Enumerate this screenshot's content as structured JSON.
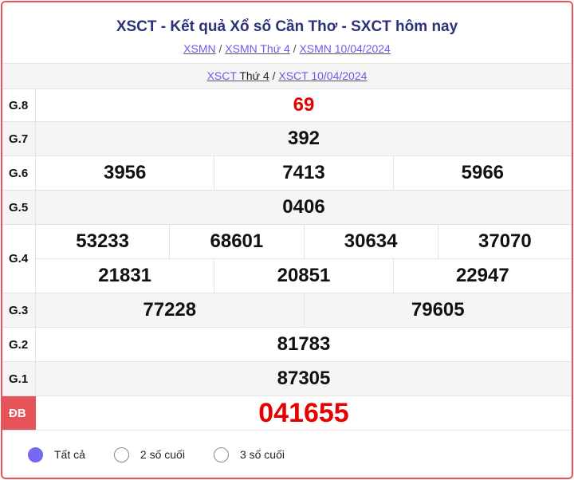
{
  "header": {
    "title": "XSCT - Kết quả Xổ số Cần Thơ - SXCT hôm nay",
    "breadcrumbs": [
      "XSMN",
      "XSMN Thứ 4",
      "XSMN 10/04/2024"
    ]
  },
  "subnav": {
    "link1_prefix": "XSCT",
    "link1_suffix": "Thứ 4",
    "link2": "XSCT 10/04/2024"
  },
  "prizes": {
    "g8": {
      "label": "G.8",
      "numbers": [
        "69"
      ]
    },
    "g7": {
      "label": "G.7",
      "numbers": [
        "392"
      ]
    },
    "g6": {
      "label": "G.6",
      "numbers": [
        "3956",
        "7413",
        "5966"
      ]
    },
    "g5": {
      "label": "G.5",
      "numbers": [
        "0406"
      ]
    },
    "g4": {
      "label": "G.4",
      "numbers": [
        "53233",
        "68601",
        "30634",
        "37070",
        "21831",
        "20851",
        "22947"
      ]
    },
    "g3": {
      "label": "G.3",
      "numbers": [
        "77228",
        "79605"
      ]
    },
    "g2": {
      "label": "G.2",
      "numbers": [
        "81783"
      ]
    },
    "g1": {
      "label": "G.1",
      "numbers": [
        "87305"
      ]
    },
    "db": {
      "label": "ĐB",
      "numbers": [
        "041655"
      ]
    }
  },
  "filter": {
    "options": [
      "Tất cả",
      "2 số cuối",
      "3 số cuối"
    ],
    "selected": "Tất cả"
  },
  "colors": {
    "accent": "#e6545a",
    "title": "#2c3179",
    "highlight": "#e60000",
    "radio": "#7469f0"
  }
}
